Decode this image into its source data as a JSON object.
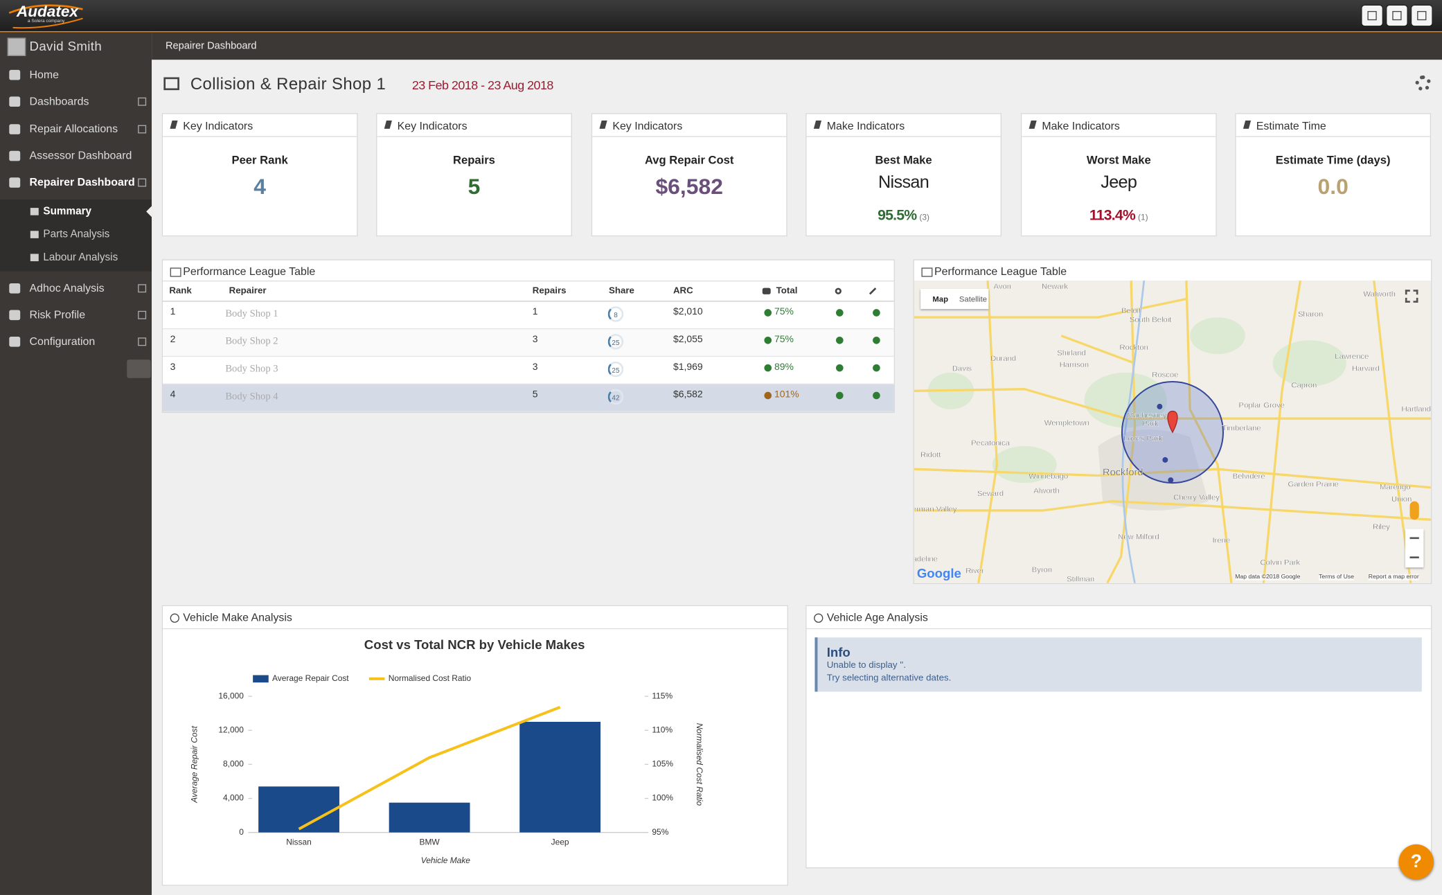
{
  "header": {
    "brand": "Audatex",
    "tagline": "a Solera company"
  },
  "sidebar": {
    "user": "David Smith",
    "menu": [
      "Home",
      "Dashboards",
      "Repair Allocations",
      "Assessor Dashboard",
      "Repairer Dashboard"
    ],
    "submenu": [
      "Summary",
      "Parts Analysis",
      "Labour Analysis"
    ],
    "menu_more": [
      "Adhoc Analysis",
      "Risk Profile",
      "Configuration"
    ]
  },
  "breadcrumb": "Repairer Dashboard",
  "page": {
    "title": "Collision & Repair Shop 1",
    "date_range": "23 Feb 2018 - 23 Aug 2018"
  },
  "kpis": [
    {
      "header": "Key Indicators",
      "label": "Peer Rank",
      "value": "4",
      "color": "#5b7f9e"
    },
    {
      "header": "Key Indicators",
      "label": "Repairs",
      "value": "5",
      "color": "#2f6b33"
    },
    {
      "header": "Key Indicators",
      "label": "Avg Repair Cost",
      "value": "$6,582",
      "color": "#6a4f7c"
    },
    {
      "header": "Make Indicators",
      "label": "Best Make",
      "make": "Nissan",
      "value": "95.5%",
      "count": "(3)",
      "color": "#2f6b33"
    },
    {
      "header": "Make Indicators",
      "label": "Worst Make",
      "make": "Jeep",
      "value": "113.4%",
      "count": "(1)",
      "color": "#a3102c"
    },
    {
      "header": "Estimate Time",
      "label": "Estimate Time (days)",
      "value": "0.0",
      "color": "#b9a171"
    }
  ],
  "league_table": {
    "title": "Performance League Table",
    "columns": [
      "Rank",
      "Repairer",
      "Repairs",
      "Share",
      "ARC",
      "Total"
    ],
    "rows": [
      {
        "rank": "1",
        "repairer": "Body Shop 1",
        "repairs": "1",
        "share": "8",
        "arc": "$2,010",
        "total": "75%",
        "total_color": "#2e7d32"
      },
      {
        "rank": "2",
        "repairer": "Body Shop 2",
        "repairs": "3",
        "share": "25",
        "arc": "$2,055",
        "total": "75%",
        "total_color": "#2e7d32"
      },
      {
        "rank": "3",
        "repairer": "Body Shop 3",
        "repairs": "3",
        "share": "25",
        "arc": "$1,969",
        "total": "89%",
        "total_color": "#2e7d32"
      },
      {
        "rank": "4",
        "repairer": "Body Shop 4",
        "repairs": "5",
        "share": "42",
        "arc": "$6,582",
        "total": "101%",
        "total_color": "#a0661c"
      }
    ]
  },
  "map": {
    "title": "Performance League Table",
    "buttons": [
      "Map",
      "Satellite"
    ],
    "places": [
      "Avon",
      "Newark",
      "Beloit",
      "South Beloit",
      "Sharon",
      "Walworth",
      "Durand",
      "Shirland",
      "Harrison",
      "Rockton",
      "Davis",
      "Roscoe",
      "Capron",
      "Lawrence",
      "Harvard",
      "Poplar Grove",
      "Hartland",
      "Machesney",
      "Park",
      "Loves Park",
      "Timberlane",
      "Wempletown",
      "Pecatonica",
      "Rockford",
      "Belvidere",
      "Garden Prairie",
      "Marengo",
      "Union",
      "Ridott",
      "Winnebago",
      "Alworth",
      "Seward",
      "Cherry Valley",
      "New Milford",
      "Irene",
      "Riley",
      "Colvin Park",
      "Byron",
      "Stillman",
      "erman Valley",
      "adeline",
      "River"
    ],
    "logo": "Google",
    "footer": [
      "Map data ©2018 Google",
      "Terms of Use",
      "Report a map error"
    ]
  },
  "vehicle_make": {
    "title": "Vehicle Make Analysis"
  },
  "chart_data": {
    "type": "bar",
    "title": "Cost vs Total NCR by Vehicle Makes",
    "categories": [
      "Nissan",
      "BMW",
      "Jeep"
    ],
    "series": [
      {
        "name": "Average Repair Cost",
        "type": "bar",
        "color": "#1b4a8b",
        "values": [
          5400,
          3500,
          13000
        ]
      },
      {
        "name": "Normalised Cost Ratio",
        "type": "line",
        "axis": "y2",
        "color": "#f6c11b",
        "values": [
          95.5,
          106,
          113.4
        ]
      }
    ],
    "xlabel": "Vehicle Make",
    "ylabel": "Average Repair Cost",
    "y2label": "Normalised Cost Ratio",
    "ylim": [
      0,
      16000
    ],
    "yticks": [
      0,
      {
        "value": 4000,
        "label": "4,000"
      },
      {
        "value": 8000,
        "label": "8,000"
      },
      {
        "value": 12000,
        "label": "12,000"
      },
      {
        "value": 16000,
        "label": "16,000"
      }
    ],
    "y2lim": [
      95,
      115
    ],
    "y2ticks": [
      {
        "value": 95,
        "label": "95%"
      },
      {
        "value": 100,
        "label": "100%"
      },
      {
        "value": 105,
        "label": "105%"
      },
      {
        "value": 110,
        "label": "110%"
      },
      {
        "value": 115,
        "label": "115%"
      }
    ],
    "grid": false,
    "legend": "top"
  },
  "vehicle_age": {
    "title": "Vehicle Age Analysis",
    "info_title": "Info",
    "info_lines": [
      "Unable to display ''.",
      "Try selecting alternative dates."
    ]
  },
  "help": "?"
}
